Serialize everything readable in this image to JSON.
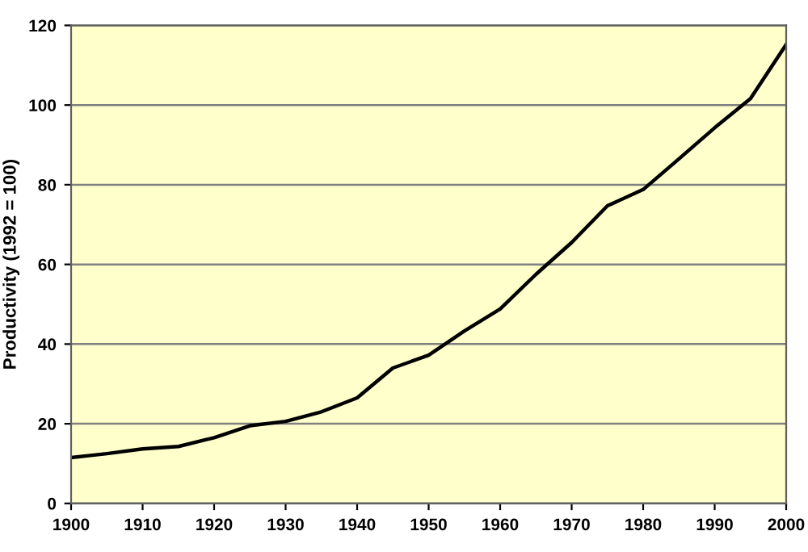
{
  "chart_data": {
    "type": "line",
    "ylabel": "Productivity (1992 = 100)",
    "x": [
      1900,
      1905,
      1910,
      1915,
      1920,
      1925,
      1930,
      1935,
      1940,
      1945,
      1950,
      1955,
      1960,
      1965,
      1970,
      1975,
      1980,
      1985,
      1990,
      1995,
      2000
    ],
    "series": [
      {
        "color": "#000000",
        "values": [
          11.5,
          12.5,
          13.7,
          14.3,
          16.5,
          19.5,
          20.6,
          23,
          26.5,
          34,
          37.2,
          43.3,
          48.8,
          57.5,
          65.5,
          74.7,
          78.8,
          86.5,
          94.3,
          101.6,
          115.2
        ]
      }
    ],
    "xlim": [
      1900,
      2000
    ],
    "xticks": [
      1900,
      1910,
      1920,
      1930,
      1940,
      1950,
      1960,
      1970,
      1980,
      1990,
      2000
    ],
    "ylim": [
      0,
      120
    ],
    "yticks": [
      0,
      20,
      40,
      60,
      80,
      100,
      120
    ],
    "grid": "y",
    "legend": false,
    "marker": "none",
    "line_style": "solid"
  }
}
